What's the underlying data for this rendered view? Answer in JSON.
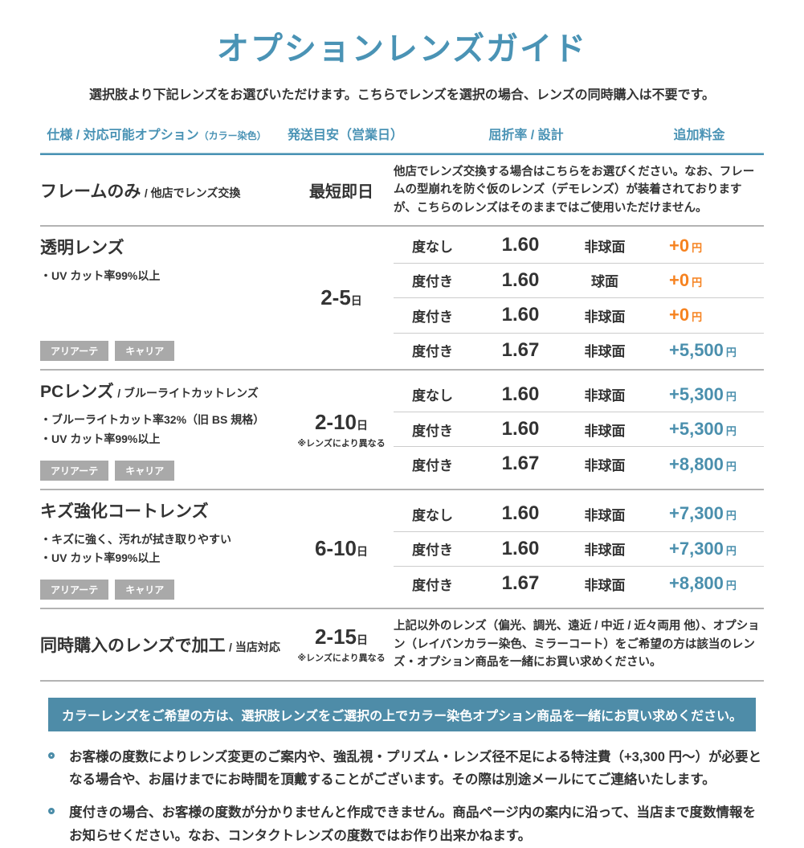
{
  "page": {
    "title": "オプションレンズガイド",
    "subtitle": "選択肢より下記レンズをお選びいただけます。こちらでレンズを選択の場合、レンズの同時購入は不要です。"
  },
  "colors": {
    "accent_teal": "#4a93b5",
    "banner_background": "#4e8ca8",
    "price_orange": "#f6821f",
    "price_blue": "#4a8fad",
    "badge_gray": "#a9a9a9"
  },
  "table": {
    "headers": [
      {
        "label": "仕様 / 対応可能オプション",
        "sub": "（カラー染色）"
      },
      {
        "label": "発送目安（営業日）"
      },
      {
        "label": "屈折率 / 設計"
      },
      {
        "label": "追加料金"
      }
    ],
    "sections": [
      {
        "name": "フレームのみ",
        "name_sub": "/ 他店でレンズ交換",
        "shipping": {
          "text": "最短即日"
        },
        "description": "他店でレンズ交換する場合はこちらをお選びください。なお、フレームの型崩れを防ぐ仮のレンズ（デモレンズ）が装着されておりますが、こちらのレンズはそのままではご使用いただけません。"
      },
      {
        "name": "透明レンズ",
        "name_sub": "",
        "features": [
          "・UV カット率99%以上"
        ],
        "badges": [
          "アリアーテ",
          "キャリア"
        ],
        "shipping": {
          "days": "2-5",
          "unit": "日"
        },
        "rows": [
          {
            "power": "度なし",
            "index": "1.60",
            "design": "非球面",
            "price": "+0",
            "unit": "円"
          },
          {
            "power": "度付き",
            "index": "1.60",
            "design": "球面",
            "price": "+0",
            "unit": "円"
          },
          {
            "power": "度付き",
            "index": "1.60",
            "design": "非球面",
            "price": "+0",
            "unit": "円"
          },
          {
            "power": "度付き",
            "index": "1.67",
            "design": "非球面",
            "price": "+5,500",
            "unit": "円"
          }
        ]
      },
      {
        "name": "PCレンズ",
        "name_sub": "/ ブルーライトカットレンズ",
        "features": [
          "・ブルーライトカット率32%（旧 BS 規格）",
          "・UV カット率99%以上"
        ],
        "badges": [
          "アリアーテ",
          "キャリア"
        ],
        "shipping": {
          "days": "2-10",
          "unit": "日",
          "note": "※レンズにより異なる"
        },
        "rows": [
          {
            "power": "度なし",
            "index": "1.60",
            "design": "非球面",
            "price": "+5,300",
            "unit": "円"
          },
          {
            "power": "度付き",
            "index": "1.60",
            "design": "非球面",
            "price": "+5,300",
            "unit": "円"
          },
          {
            "power": "度付き",
            "index": "1.67",
            "design": "非球面",
            "price": "+8,800",
            "unit": "円"
          }
        ]
      },
      {
        "name": "キズ強化コートレンズ",
        "name_sub": "",
        "features": [
          "・キズに強く、汚れが拭き取りやすい",
          "・UV カット率99%以上"
        ],
        "badges": [
          "アリアーテ",
          "キャリア"
        ],
        "shipping": {
          "days": "6-10",
          "unit": "日"
        },
        "rows": [
          {
            "power": "度なし",
            "index": "1.60",
            "design": "非球面",
            "price": "+7,300",
            "unit": "円"
          },
          {
            "power": "度付き",
            "index": "1.60",
            "design": "非球面",
            "price": "+7,300",
            "unit": "円"
          },
          {
            "power": "度付き",
            "index": "1.67",
            "design": "非球面",
            "price": "+8,800",
            "unit": "円"
          }
        ]
      },
      {
        "name": "同時購入のレンズで加工",
        "name_sub": "/ 当店対応",
        "shipping": {
          "days": "2-15",
          "unit": "日",
          "note": "※レンズにより異なる"
        },
        "description": "上記以外のレンズ（偏光、調光、遠近 / 中近 / 近々両用 他）、オプション（レイバンカラー染色、ミラーコート）をご希望の方は該当のレンズ・オプション商品を一緒にお買い求めください。"
      }
    ]
  },
  "banner": {
    "text": "カラーレンズをご希望の方は、選択肢レンズをご選択の上でカラー染色オプション商品を一緒にお買い求めください。"
  },
  "notes": [
    "お客様の度数によりレンズ変更のご案内や、強乱視・プリズム・レンズ径不足による特注費（+3,300 円～）が必要となる場合や、お届けまでにお時間を頂戴することがございます。その際は別途メールにてご連絡いたします。",
    "度付きの場合、お客様の度数が分かりませんと作成できません。商品ページ内の案内に沿って、当店まで度数情報をお知らせください。なお、コンタクトレンズの度数ではお作り出来かねます。"
  ]
}
